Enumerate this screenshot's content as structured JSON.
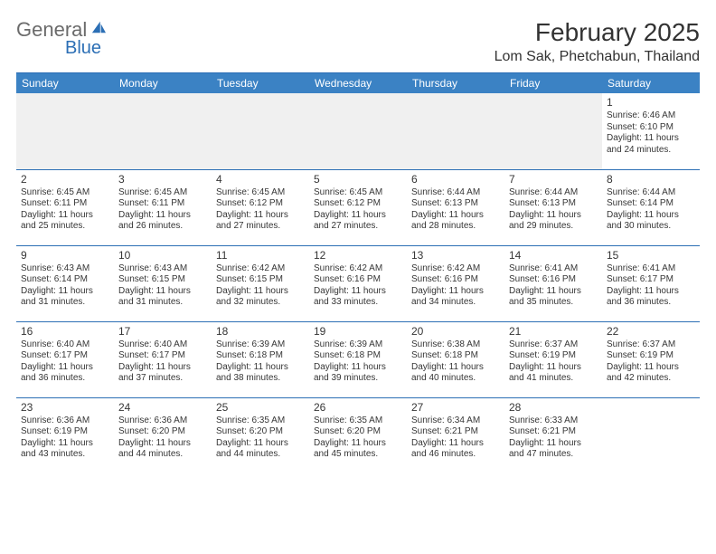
{
  "logo": {
    "part1": "General",
    "part2": "Blue"
  },
  "title": "February 2025",
  "location": "Lom Sak, Phetchabun, Thailand",
  "colors": {
    "header_bg": "#3b82c4",
    "header_text": "#ffffff",
    "rule": "#2c6fb5",
    "body_text": "#363636",
    "logo_gray": "#6b6b6b",
    "logo_blue": "#2c6fb5",
    "page_bg": "#ffffff",
    "empty_row_bg": "#f0f0f0"
  },
  "typography": {
    "title_fontsize": 28,
    "location_fontsize": 16,
    "dayheader_fontsize": 12,
    "daynum_fontsize": 12,
    "cell_fontsize": 10
  },
  "day_headers": [
    "Sunday",
    "Monday",
    "Tuesday",
    "Wednesday",
    "Thursday",
    "Friday",
    "Saturday"
  ],
  "weeks": [
    [
      null,
      null,
      null,
      null,
      null,
      null,
      {
        "n": "1",
        "sr": "6:46 AM",
        "ss": "6:10 PM",
        "dl": "11 hours and 24 minutes."
      }
    ],
    [
      {
        "n": "2",
        "sr": "6:45 AM",
        "ss": "6:11 PM",
        "dl": "11 hours and 25 minutes."
      },
      {
        "n": "3",
        "sr": "6:45 AM",
        "ss": "6:11 PM",
        "dl": "11 hours and 26 minutes."
      },
      {
        "n": "4",
        "sr": "6:45 AM",
        "ss": "6:12 PM",
        "dl": "11 hours and 27 minutes."
      },
      {
        "n": "5",
        "sr": "6:45 AM",
        "ss": "6:12 PM",
        "dl": "11 hours and 27 minutes."
      },
      {
        "n": "6",
        "sr": "6:44 AM",
        "ss": "6:13 PM",
        "dl": "11 hours and 28 minutes."
      },
      {
        "n": "7",
        "sr": "6:44 AM",
        "ss": "6:13 PM",
        "dl": "11 hours and 29 minutes."
      },
      {
        "n": "8",
        "sr": "6:44 AM",
        "ss": "6:14 PM",
        "dl": "11 hours and 30 minutes."
      }
    ],
    [
      {
        "n": "9",
        "sr": "6:43 AM",
        "ss": "6:14 PM",
        "dl": "11 hours and 31 minutes."
      },
      {
        "n": "10",
        "sr": "6:43 AM",
        "ss": "6:15 PM",
        "dl": "11 hours and 31 minutes."
      },
      {
        "n": "11",
        "sr": "6:42 AM",
        "ss": "6:15 PM",
        "dl": "11 hours and 32 minutes."
      },
      {
        "n": "12",
        "sr": "6:42 AM",
        "ss": "6:16 PM",
        "dl": "11 hours and 33 minutes."
      },
      {
        "n": "13",
        "sr": "6:42 AM",
        "ss": "6:16 PM",
        "dl": "11 hours and 34 minutes."
      },
      {
        "n": "14",
        "sr": "6:41 AM",
        "ss": "6:16 PM",
        "dl": "11 hours and 35 minutes."
      },
      {
        "n": "15",
        "sr": "6:41 AM",
        "ss": "6:17 PM",
        "dl": "11 hours and 36 minutes."
      }
    ],
    [
      {
        "n": "16",
        "sr": "6:40 AM",
        "ss": "6:17 PM",
        "dl": "11 hours and 36 minutes."
      },
      {
        "n": "17",
        "sr": "6:40 AM",
        "ss": "6:17 PM",
        "dl": "11 hours and 37 minutes."
      },
      {
        "n": "18",
        "sr": "6:39 AM",
        "ss": "6:18 PM",
        "dl": "11 hours and 38 minutes."
      },
      {
        "n": "19",
        "sr": "6:39 AM",
        "ss": "6:18 PM",
        "dl": "11 hours and 39 minutes."
      },
      {
        "n": "20",
        "sr": "6:38 AM",
        "ss": "6:18 PM",
        "dl": "11 hours and 40 minutes."
      },
      {
        "n": "21",
        "sr": "6:37 AM",
        "ss": "6:19 PM",
        "dl": "11 hours and 41 minutes."
      },
      {
        "n": "22",
        "sr": "6:37 AM",
        "ss": "6:19 PM",
        "dl": "11 hours and 42 minutes."
      }
    ],
    [
      {
        "n": "23",
        "sr": "6:36 AM",
        "ss": "6:19 PM",
        "dl": "11 hours and 43 minutes."
      },
      {
        "n": "24",
        "sr": "6:36 AM",
        "ss": "6:20 PM",
        "dl": "11 hours and 44 minutes."
      },
      {
        "n": "25",
        "sr": "6:35 AM",
        "ss": "6:20 PM",
        "dl": "11 hours and 44 minutes."
      },
      {
        "n": "26",
        "sr": "6:35 AM",
        "ss": "6:20 PM",
        "dl": "11 hours and 45 minutes."
      },
      {
        "n": "27",
        "sr": "6:34 AM",
        "ss": "6:21 PM",
        "dl": "11 hours and 46 minutes."
      },
      {
        "n": "28",
        "sr": "6:33 AM",
        "ss": "6:21 PM",
        "dl": "11 hours and 47 minutes."
      },
      null
    ]
  ],
  "labels": {
    "sunrise": "Sunrise:",
    "sunset": "Sunset:",
    "daylight": "Daylight:"
  }
}
